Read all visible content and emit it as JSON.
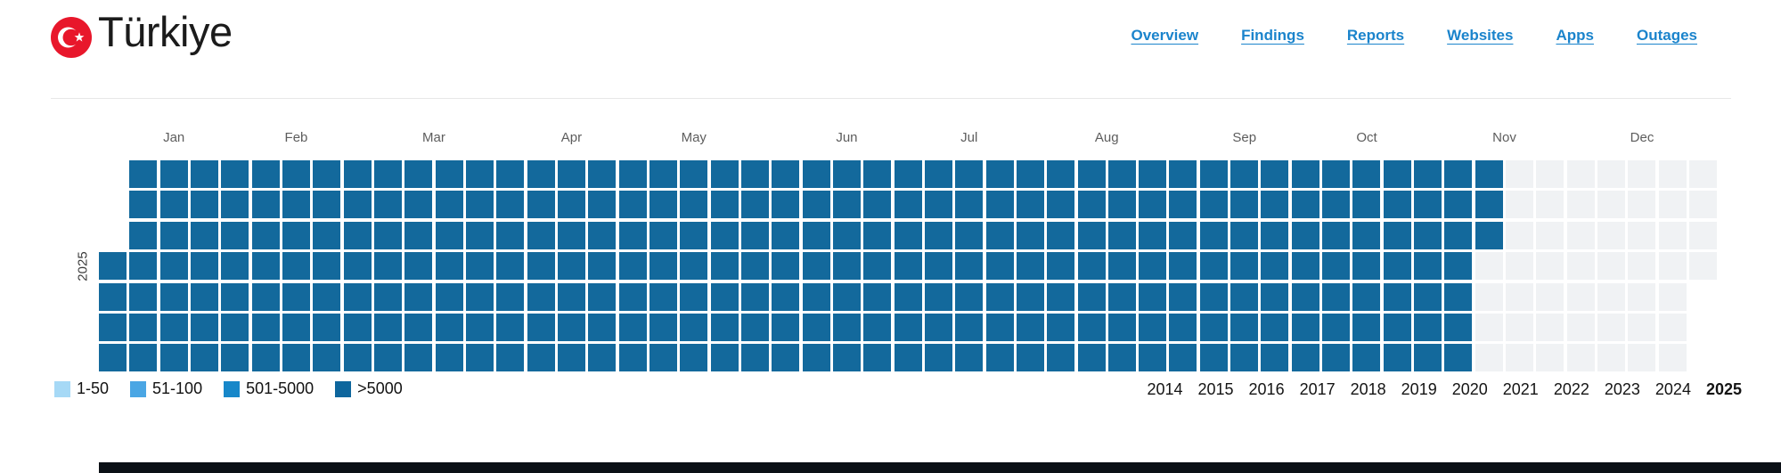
{
  "header": {
    "title": "Türkiye",
    "flag_colors": {
      "red": "#e8172b",
      "white": "#ffffff"
    },
    "nav": [
      "Overview",
      "Findings",
      "Reports",
      "Websites",
      "Apps",
      "Outages"
    ],
    "nav_color": "#1b84cc"
  },
  "chart_data": {
    "type": "heatmap",
    "year": "2025",
    "day_rows": 7,
    "week_columns": 53,
    "month_labels": [
      "Jan",
      "Feb",
      "Mar",
      "Apr",
      "May",
      "Jun",
      "Jul",
      "Aug",
      "Sep",
      "Oct",
      "Nov",
      "Dec"
    ],
    "month_center_cols": [
      2,
      6,
      10.5,
      15,
      19,
      24,
      28,
      32.5,
      37,
      41,
      45.5,
      50
    ],
    "cell_states_by_week": [
      "...FFFF",
      "FFFFFFF",
      "FFFFFFF",
      "FFFFFFF",
      "FFFFFFF",
      "FFFFFFF",
      "FFFFFFF",
      "FFFFFFF",
      "FFFFFFF",
      "FFFFFFF",
      "FFFFFFF",
      "FFFFFFF",
      "FFFFFFF",
      "FFFFFFF",
      "FFFFFFF",
      "FFFFFFF",
      "FFFFFFF",
      "FFFFFFF",
      "FFFFFFF",
      "FFFFFFF",
      "FFFFFFF",
      "FFFFFFF",
      "FFFFFFF",
      "FFFFFFF",
      "FFFFFFF",
      "FFFFFFF",
      "FFFFFFF",
      "FFFFFFF",
      "FFFFFFF",
      "FFFFFFF",
      "FFFFFFF",
      "FFFFFFF",
      "FFFFFFF",
      "FFFFFFF",
      "FFFFFFF",
      "FFFFFFF",
      "FFFFFFF",
      "FFFFFFF",
      "FFFFFFF",
      "FFFFFFF",
      "FFFFFFF",
      "FFFFFFF",
      "FFFFFFF",
      "FFFFFFF",
      "FFFFFFF",
      "FFFEEEE",
      "EEEEEEE",
      "EEEEEEE",
      "EEEEEEE",
      "EEEEEEE",
      "EEEEEEE",
      "EEEEEEE",
      "EEEE..."
    ],
    "filled_value_bucket": ">5000",
    "filled_color": "#13699c",
    "empty_color": "#f0f2f4",
    "legend": [
      {
        "label": "1-50",
        "color": "#a6d9f6"
      },
      {
        "label": "51-100",
        "color": "#4aa6e4"
      },
      {
        "label": "501-5000",
        "color": "#1787c9"
      },
      {
        "label": ">5000",
        "color": "#0e669d"
      }
    ],
    "years_nav": [
      "2014",
      "2015",
      "2016",
      "2017",
      "2018",
      "2019",
      "2020",
      "2021",
      "2022",
      "2023",
      "2024",
      "2025"
    ],
    "selected_year": "2025"
  }
}
